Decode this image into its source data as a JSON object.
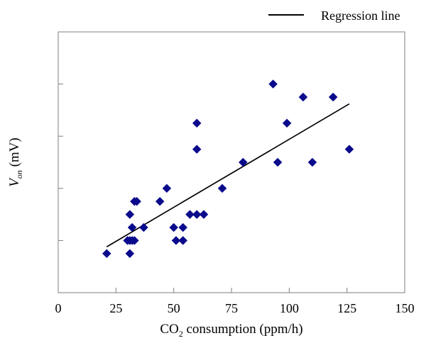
{
  "chart_data": {
    "type": "scatter",
    "title": "",
    "xlabel": {
      "prefix": "CO",
      "subscript": "2",
      "suffix": " consumption (ppm/h)"
    },
    "ylabel": {
      "main": "V",
      "subscript": "on",
      "suffix": " (mV)"
    },
    "xlim": [
      0,
      150
    ],
    "ylim": [
      0,
      5
    ],
    "xticks": [
      0,
      25,
      50,
      75,
      100,
      125,
      150
    ],
    "xtick_labels": [
      "0",
      "25",
      "50",
      "75",
      "100",
      "125",
      "150"
    ],
    "yticks": [
      1,
      2,
      3,
      4
    ],
    "ytick_labels": [],
    "grid": false,
    "legend": {
      "position": "top-right",
      "entries": [
        {
          "label": "Regression line",
          "type": "line",
          "color": "#000000"
        }
      ]
    },
    "series": [
      {
        "type": "scatter",
        "marker": "diamond",
        "color": "#0a0a8c",
        "points": [
          [
            21,
            0.75
          ],
          [
            30,
            1.0
          ],
          [
            31,
            0.75
          ],
          [
            31,
            1.0
          ],
          [
            31,
            1.5
          ],
          [
            32,
            1.25
          ],
          [
            32,
            1.0
          ],
          [
            33,
            1.0
          ],
          [
            33,
            1.75
          ],
          [
            34,
            1.75
          ],
          [
            37,
            1.25
          ],
          [
            44,
            1.75
          ],
          [
            47,
            2.0
          ],
          [
            50,
            1.25
          ],
          [
            51,
            1.0
          ],
          [
            54,
            1.25
          ],
          [
            54,
            1.0
          ],
          [
            57,
            1.5
          ],
          [
            60,
            1.5
          ],
          [
            60,
            2.75
          ],
          [
            60,
            3.25
          ],
          [
            63,
            1.5
          ],
          [
            71,
            2.0
          ],
          [
            80,
            2.5
          ],
          [
            93,
            4.0
          ],
          [
            95,
            2.5
          ],
          [
            99,
            3.25
          ],
          [
            106,
            3.75
          ],
          [
            110,
            2.5
          ],
          [
            119,
            3.75
          ],
          [
            126,
            2.75
          ]
        ]
      },
      {
        "name": "Regression line",
        "type": "line",
        "color": "#000000",
        "points": [
          [
            21,
            0.88
          ],
          [
            126,
            3.62
          ]
        ]
      }
    ]
  }
}
